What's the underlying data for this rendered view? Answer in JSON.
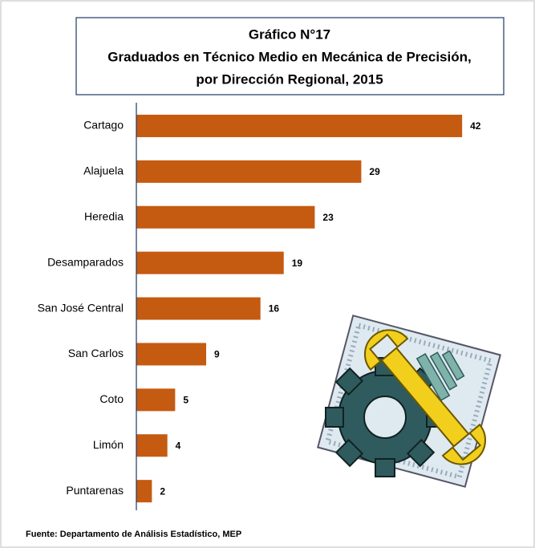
{
  "chart_data": {
    "type": "bar",
    "orientation": "horizontal",
    "title": [
      "Gráfico N°17",
      "Graduados en Técnico Medio en Mecánica de Precisión,",
      "por Dirección Regional, 2015"
    ],
    "categories": [
      "Cartago",
      "Alajuela",
      "Heredia",
      "Desamparados",
      "San José Central",
      "San Carlos",
      "Coto",
      "Limón",
      "Puntarenas"
    ],
    "values": [
      42,
      29,
      23,
      19,
      16,
      9,
      5,
      4,
      2
    ],
    "color": "#c55a11",
    "source": "Fuente: Departamento de Análisis Estadístico, MEP"
  }
}
